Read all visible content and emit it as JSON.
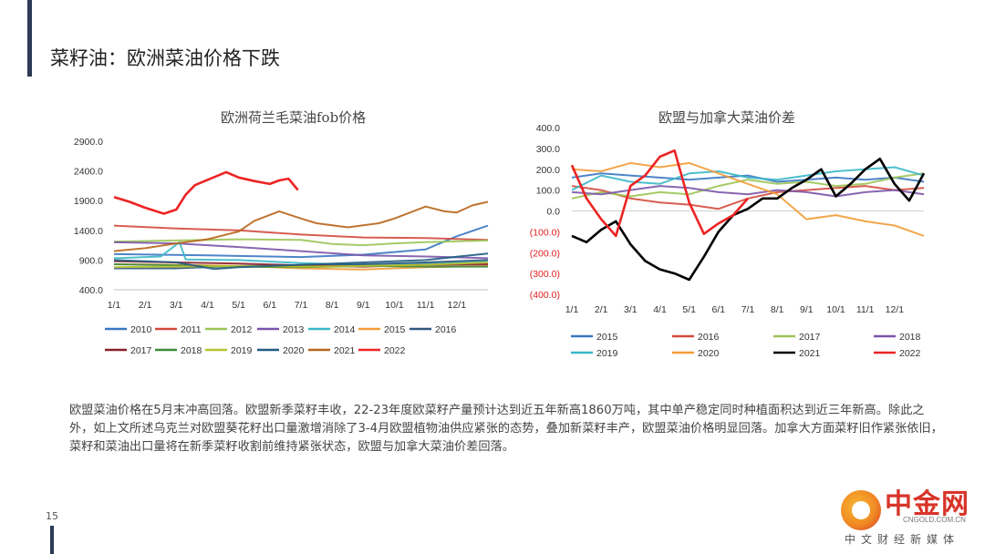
{
  "page": {
    "title": "菜籽油：欧洲菜油价格下跌",
    "page_number": "15",
    "body_text": "欧盟菜油价格在5月末冲高回落。欧盟新季菜籽丰收，22-23年度欧菜籽产量预计达到近五年新高1860万吨，其中单产稳定同时种植面积达到近三年新高。除此之外，如上文所述乌克兰对欧盟葵花籽出口量激增消除了3-4月欧盟植物油供应紧张的态势，叠加新菜籽丰产，欧盟菜油价格明显回落。加拿大方面菜籽旧作紧张依旧，菜籽和菜油出口量将在新季菜籽收割前维持紧张状态，欧盟与加拿大菜油价差回落。",
    "logo": {
      "name": "中金网",
      "url": "CNGOLD.COM.CN",
      "sub": "中文财经新媒体"
    }
  },
  "chart_data": [
    {
      "type": "line",
      "title": "欧洲荷兰毛菜油fob价格",
      "x_ticks": [
        "1/1",
        "2/1",
        "3/1",
        "4/1",
        "5/1",
        "6/1",
        "7/1",
        "8/1",
        "9/1",
        "10/1",
        "11/1",
        "12/1"
      ],
      "y_ticks": [
        "400.0",
        "900.0",
        "1400.0",
        "1900.0",
        "2400.0",
        "2900.0"
      ],
      "ylim": [
        400,
        2900
      ],
      "xlim": [
        1,
        13
      ],
      "series": [
        {
          "name": "2010",
          "color": "#3a78c2",
          "values": [
            [
              1,
              1000
            ],
            [
              4,
              980
            ],
            [
              7,
              950
            ],
            [
              9,
              990
            ],
            [
              11,
              1080
            ],
            [
              12,
              1300
            ],
            [
              13,
              1480
            ]
          ]
        },
        {
          "name": "2011",
          "color": "#d24b3e",
          "values": [
            [
              1,
              1480
            ],
            [
              3,
              1430
            ],
            [
              5,
              1400
            ],
            [
              7,
              1330
            ],
            [
              9,
              1280
            ],
            [
              11,
              1270
            ],
            [
              13,
              1240
            ]
          ]
        },
        {
          "name": "2012",
          "color": "#9bc455",
          "values": [
            [
              1,
              1210
            ],
            [
              3,
              1230
            ],
            [
              5,
              1250
            ],
            [
              7,
              1240
            ],
            [
              8,
              1170
            ],
            [
              9,
              1150
            ],
            [
              10,
              1180
            ],
            [
              11,
              1200
            ],
            [
              13,
              1230
            ]
          ]
        },
        {
          "name": "2013",
          "color": "#7b55a8",
          "values": [
            [
              1,
              1200
            ],
            [
              3,
              1180
            ],
            [
              5,
              1120
            ],
            [
              7,
              1050
            ],
            [
              9,
              980
            ],
            [
              11,
              960
            ],
            [
              13,
              930
            ]
          ]
        },
        {
          "name": "2014",
          "color": "#3bb8c8",
          "values": [
            [
              1,
              930
            ],
            [
              2.5,
              960
            ],
            [
              3.1,
              1200
            ],
            [
              3.3,
              910
            ],
            [
              5,
              900
            ],
            [
              7,
              850
            ],
            [
              9,
              820
            ],
            [
              11,
              850
            ],
            [
              13,
              870
            ]
          ]
        },
        {
          "name": "2015",
          "color": "#f29c38",
          "values": [
            [
              1,
              830
            ],
            [
              3,
              820
            ],
            [
              5,
              800
            ],
            [
              7,
              760
            ],
            [
              9,
              740
            ],
            [
              11,
              780
            ],
            [
              13,
              800
            ]
          ]
        },
        {
          "name": "2016",
          "color": "#2f5680",
          "values": [
            [
              1,
              760
            ],
            [
              3,
              760
            ],
            [
              5,
              800
            ],
            [
              7,
              810
            ],
            [
              9,
              830
            ],
            [
              11,
              860
            ],
            [
              13,
              900
            ]
          ]
        },
        {
          "name": "2017",
          "color": "#8a1f2a",
          "values": [
            [
              1,
              880
            ],
            [
              3,
              860
            ],
            [
              5,
              840
            ],
            [
              7,
              810
            ],
            [
              9,
              790
            ],
            [
              11,
              820
            ],
            [
              13,
              830
            ]
          ]
        },
        {
          "name": "2018",
          "color": "#3d8a3a",
          "values": [
            [
              1,
              830
            ],
            [
              3,
              810
            ],
            [
              5,
              790
            ],
            [
              7,
              780
            ],
            [
              9,
              800
            ],
            [
              11,
              790
            ],
            [
              13,
              790
            ]
          ]
        },
        {
          "name": "2019",
          "color": "#b7c22a",
          "values": [
            [
              1,
              780
            ],
            [
              3,
              790
            ],
            [
              5,
              800
            ],
            [
              7,
              790
            ],
            [
              9,
              800
            ],
            [
              11,
              820
            ],
            [
              13,
              860
            ]
          ]
        },
        {
          "name": "2020",
          "color": "#205c82",
          "values": [
            [
              1,
              900
            ],
            [
              3,
              860
            ],
            [
              4.2,
              750
            ],
            [
              5,
              780
            ],
            [
              7,
              820
            ],
            [
              9,
              860
            ],
            [
              11,
              900
            ],
            [
              13,
              1010
            ]
          ]
        },
        {
          "name": "2021",
          "color": "#b8651a",
          "values": [
            [
              1,
              1050
            ],
            [
              2,
              1100
            ],
            [
              3,
              1180
            ],
            [
              4,
              1250
            ],
            [
              5,
              1380
            ],
            [
              5.5,
              1560
            ],
            [
              6.3,
              1720
            ],
            [
              7,
              1600
            ],
            [
              7.5,
              1520
            ],
            [
              8.5,
              1450
            ],
            [
              9.5,
              1520
            ],
            [
              10,
              1600
            ],
            [
              11,
              1800
            ],
            [
              11.6,
              1720
            ],
            [
              12,
              1700
            ],
            [
              12.5,
              1820
            ],
            [
              13,
              1880
            ]
          ]
        },
        {
          "name": "2022",
          "color": "#ec2424",
          "values": [
            [
              1,
              1960
            ],
            [
              1.5,
              1880
            ],
            [
              2,
              1780
            ],
            [
              2.6,
              1680
            ],
            [
              3,
              1750
            ],
            [
              3.3,
              2000
            ],
            [
              3.6,
              2160
            ],
            [
              4,
              2250
            ],
            [
              4.6,
              2380
            ],
            [
              5,
              2290
            ],
            [
              5.5,
              2230
            ],
            [
              6,
              2180
            ],
            [
              6.3,
              2240
            ],
            [
              6.6,
              2270
            ],
            [
              6.9,
              2080
            ]
          ]
        }
      ]
    },
    {
      "type": "line",
      "title": "欧盟与加拿大菜油价差",
      "x_ticks": [
        "1/1",
        "2/1",
        "3/1",
        "4/1",
        "5/1",
        "6/1",
        "7/1",
        "8/1",
        "9/1",
        "10/1",
        "11/1",
        "12/1"
      ],
      "y_ticks": [
        "(400.0)",
        "(300.0)",
        "(200.0)",
        "(100.0)",
        "0.0",
        "100.0",
        "200.0",
        "300.0",
        "400.0"
      ],
      "ylim": [
        -400,
        400
      ],
      "xlim": [
        1,
        13
      ],
      "series": [
        {
          "name": "2015",
          "color": "#3a78c2",
          "values": [
            [
              1,
              160
            ],
            [
              2,
              180
            ],
            [
              3,
              170
            ],
            [
              4,
              160
            ],
            [
              5,
              150
            ],
            [
              6,
              160
            ],
            [
              7,
              170
            ],
            [
              8,
              140
            ],
            [
              9,
              150
            ],
            [
              10,
              160
            ],
            [
              11,
              150
            ],
            [
              12,
              160
            ],
            [
              13,
              140
            ]
          ]
        },
        {
          "name": "2016",
          "color": "#d24b3e",
          "values": [
            [
              1,
              120
            ],
            [
              2,
              100
            ],
            [
              3,
              60
            ],
            [
              4,
              40
            ],
            [
              5,
              30
            ],
            [
              6,
              10
            ],
            [
              7,
              60
            ],
            [
              8,
              90
            ],
            [
              9,
              100
            ],
            [
              10,
              110
            ],
            [
              11,
              120
            ],
            [
              12,
              100
            ],
            [
              13,
              110
            ]
          ]
        },
        {
          "name": "2017",
          "color": "#9bc455",
          "values": [
            [
              1,
              60
            ],
            [
              2,
              90
            ],
            [
              3,
              70
            ],
            [
              4,
              90
            ],
            [
              5,
              80
            ],
            [
              6,
              120
            ],
            [
              7,
              150
            ],
            [
              8,
              130
            ],
            [
              9,
              140
            ],
            [
              10,
              120
            ],
            [
              11,
              130
            ],
            [
              12,
              160
            ],
            [
              13,
              180
            ]
          ]
        },
        {
          "name": "2018",
          "color": "#7b55a8",
          "values": [
            [
              1,
              90
            ],
            [
              2,
              80
            ],
            [
              3,
              100
            ],
            [
              4,
              120
            ],
            [
              5,
              110
            ],
            [
              6,
              90
            ],
            [
              7,
              80
            ],
            [
              8,
              100
            ],
            [
              9,
              90
            ],
            [
              10,
              70
            ],
            [
              11,
              90
            ],
            [
              12,
              100
            ],
            [
              13,
              80
            ]
          ]
        },
        {
          "name": "2019",
          "color": "#3bb8c8",
          "values": [
            [
              1,
              100
            ],
            [
              2,
              170
            ],
            [
              3,
              140
            ],
            [
              4,
              130
            ],
            [
              5,
              180
            ],
            [
              6,
              190
            ],
            [
              7,
              160
            ],
            [
              8,
              150
            ],
            [
              9,
              170
            ],
            [
              10,
              190
            ],
            [
              11,
              200
            ],
            [
              12,
              210
            ],
            [
              13,
              170
            ]
          ]
        },
        {
          "name": "2020",
          "color": "#f29c38",
          "values": [
            [
              1,
              200
            ],
            [
              2,
              190
            ],
            [
              3,
              230
            ],
            [
              4,
              210
            ],
            [
              5,
              230
            ],
            [
              6,
              180
            ],
            [
              7,
              130
            ],
            [
              8,
              80
            ],
            [
              9,
              -40
            ],
            [
              10,
              -20
            ],
            [
              11,
              -50
            ],
            [
              12,
              -70
            ],
            [
              13,
              -120
            ]
          ]
        },
        {
          "name": "2021",
          "color": "#000000",
          "values": [
            [
              1,
              -120
            ],
            [
              1.5,
              -150
            ],
            [
              2,
              -90
            ],
            [
              2.5,
              -50
            ],
            [
              3,
              -160
            ],
            [
              3.5,
              -240
            ],
            [
              4,
              -280
            ],
            [
              4.5,
              -300
            ],
            [
              5,
              -330
            ],
            [
              5.5,
              -220
            ],
            [
              6,
              -100
            ],
            [
              6.5,
              -20
            ],
            [
              7,
              10
            ],
            [
              7.5,
              60
            ],
            [
              8,
              60
            ],
            [
              8.5,
              110
            ],
            [
              9,
              150
            ],
            [
              9.5,
              200
            ],
            [
              10,
              70
            ],
            [
              10.5,
              130
            ],
            [
              11,
              200
            ],
            [
              11.5,
              250
            ],
            [
              12,
              130
            ],
            [
              12.5,
              50
            ],
            [
              13,
              180
            ]
          ]
        },
        {
          "name": "2022",
          "color": "#ec2424",
          "values": [
            [
              1,
              220
            ],
            [
              1.5,
              60
            ],
            [
              2,
              -40
            ],
            [
              2.5,
              -120
            ],
            [
              3,
              120
            ],
            [
              3.5,
              170
            ],
            [
              4,
              260
            ],
            [
              4.5,
              290
            ],
            [
              5,
              40
            ],
            [
              5.5,
              -110
            ],
            [
              6,
              -60
            ],
            [
              6.5,
              -20
            ],
            [
              7,
              60
            ]
          ]
        }
      ]
    }
  ]
}
